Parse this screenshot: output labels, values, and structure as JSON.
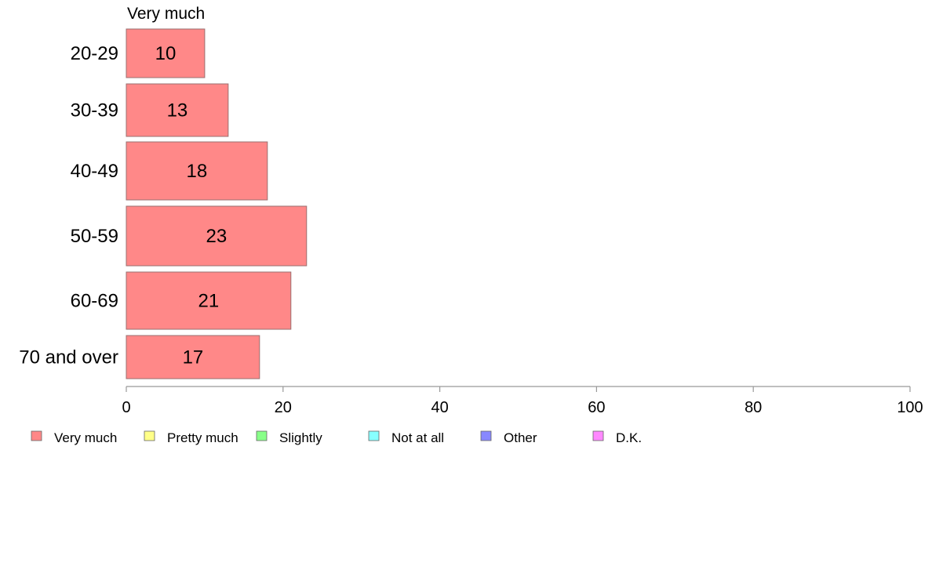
{
  "chart_data": {
    "type": "bar",
    "orientation": "horizontal",
    "subtitle": "Very much",
    "categories": [
      "20-29",
      "30-39",
      "40-49",
      "50-59",
      "60-69",
      "70 and over"
    ],
    "series": [
      {
        "name": "Very much",
        "values": [
          10,
          13,
          18,
          23,
          21,
          17
        ]
      }
    ],
    "xlim": [
      0,
      100
    ],
    "xticks": [
      0,
      20,
      40,
      60,
      80,
      100
    ],
    "grid": false,
    "legend": {
      "placement": "bottom",
      "entries": [
        {
          "label": "Very much",
          "color": "#ff8888"
        },
        {
          "label": "Pretty much",
          "color": "#ffff88"
        },
        {
          "label": "Slightly",
          "color": "#88ff88"
        },
        {
          "label": "Not at all",
          "color": "#88ffff"
        },
        {
          "label": "Other",
          "color": "#8888ff"
        },
        {
          "label": "D.K.",
          "color": "#ff88ff"
        }
      ]
    },
    "colors": {
      "bar": "#ff8888",
      "bar_stroke": "#9a6f6f",
      "axis": "#999999"
    }
  }
}
